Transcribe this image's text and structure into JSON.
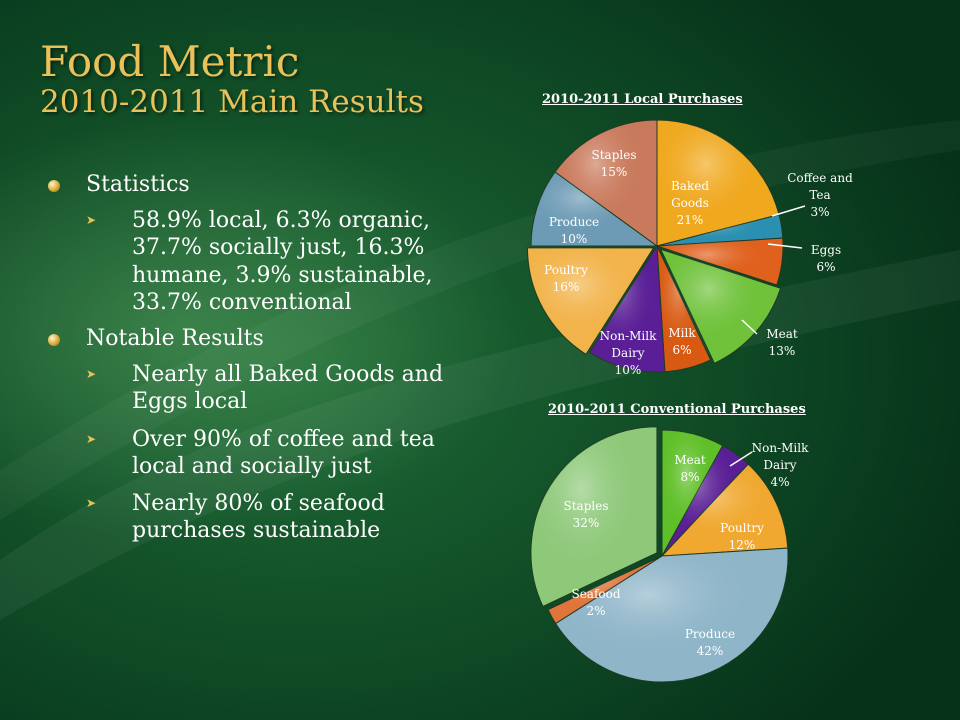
{
  "title": {
    "line1": "Food Metric",
    "line2": "2010-2011 Main Results"
  },
  "bullets": [
    {
      "text": "Statistics",
      "sub": [
        "58.9% local, 6.3% organic, 37.7% socially just, 16.3% humane, 3.9% sustainable, 33.7% conventional"
      ]
    },
    {
      "text": "Notable Results",
      "sub": [
        "Nearly all Baked Goods and Eggs local",
        "Over 90% of coffee and tea local and socially just",
        "Nearly 80% of seafood purchases sustainable"
      ]
    }
  ],
  "chart_data": [
    {
      "type": "pie",
      "title": "2010-2011 Local Purchases",
      "slices": [
        {
          "label": "Baked Goods",
          "value": 21,
          "display": "21%",
          "color": "#f0a81e"
        },
        {
          "label": "Coffee and Tea",
          "value": 3,
          "display": "3%",
          "color": "#2a8fb0"
        },
        {
          "label": "Eggs",
          "value": 6,
          "display": "6%",
          "color": "#e0611e"
        },
        {
          "label": "Meat",
          "value": 13,
          "display": "13%",
          "color": "#6fc23a"
        },
        {
          "label": "Milk",
          "value": 6,
          "display": "6%",
          "color": "#d85a12"
        },
        {
          "label": "Non-Milk Dairy",
          "value": 10,
          "display": "10%",
          "color": "#5a1f96"
        },
        {
          "label": "Poultry",
          "value": 16,
          "display": "16%",
          "color": "#f2b34a"
        },
        {
          "label": "Produce",
          "value": 10,
          "display": "10%",
          "color": "#6d9bb5"
        },
        {
          "label": "Staples",
          "value": 15,
          "display": "15%",
          "color": "#c97a5c"
        }
      ],
      "legend": "none (data labels on slices)"
    },
    {
      "type": "pie",
      "title": "2010-2011 Conventional Purchases",
      "slices": [
        {
          "label": "Meat",
          "value": 8,
          "display": "8%",
          "color": "#5fbf28"
        },
        {
          "label": "Non-Milk Dairy",
          "value": 4,
          "display": "4%",
          "color": "#5a1f96"
        },
        {
          "label": "Poultry",
          "value": 12,
          "display": "12%",
          "color": "#f0a830"
        },
        {
          "label": "Produce",
          "value": 42,
          "display": "42%",
          "color": "#8fb5c9"
        },
        {
          "label": "Seafood",
          "value": 2,
          "display": "2%",
          "color": "#e0753c"
        },
        {
          "label": "Staples",
          "value": 32,
          "display": "32%",
          "color": "#8ec97a"
        }
      ],
      "legend": "none (data labels on slices)"
    }
  ],
  "colors": {
    "title": "#e8c15a",
    "background": "#124f2a",
    "text": "#ffffff"
  }
}
